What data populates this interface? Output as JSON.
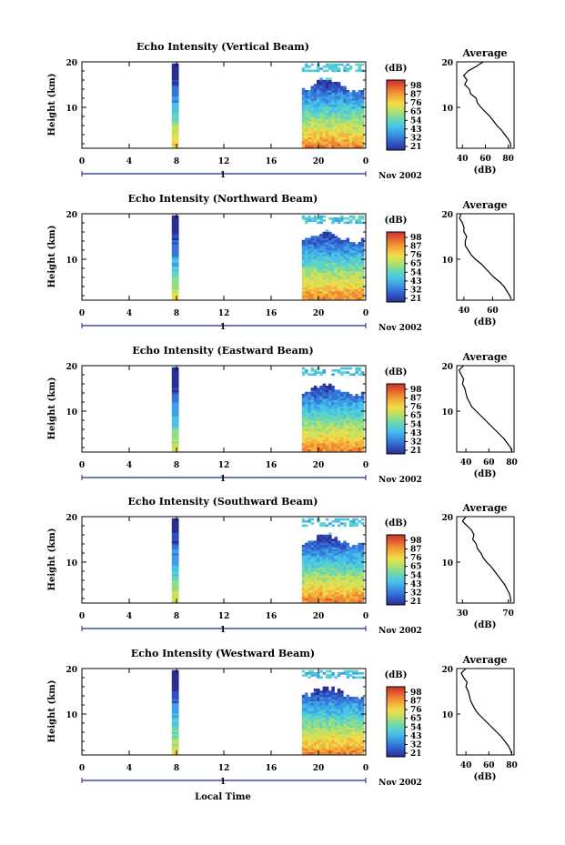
{
  "time_axis_label": "Local Time",
  "colors": {
    "colorbar": [
      "#2a2f8f",
      "#2e4fbf",
      "#3576d8",
      "#3d9fe6",
      "#48c3e6",
      "#5fd4c2",
      "#8fdc8a",
      "#c6e15e",
      "#f0dc4a",
      "#f3b53c",
      "#ee8a34",
      "#e2562e",
      "#c8322a"
    ],
    "trace": "#000000",
    "axis": "#000000",
    "baseline": "#1c2a8a"
  },
  "chart_data": [
    {
      "type": "heatmap",
      "title": "Echo Intensity (Vertical Beam)",
      "ylabel": "Height (km)",
      "x_ticks": [
        "0",
        "4",
        "8",
        "12",
        "16",
        "20",
        "0"
      ],
      "xlim": [
        0,
        24
      ],
      "y_ticks": [
        "20",
        "10"
      ],
      "ylim": [
        1,
        20
      ],
      "date_day": "1",
      "date_month": "Nov 2002",
      "colorbar": {
        "unit": "(dB)",
        "ticks": [
          "98",
          "87",
          "76",
          "65",
          "54",
          "43",
          "32",
          "21"
        ]
      },
      "average_profile": {
        "type": "line",
        "title": "Average",
        "xlabel": "(dB)",
        "x_ticks": [
          "40",
          "60",
          "80"
        ],
        "xlim": [
          35,
          85
        ],
        "y_ticks": [
          "20",
          "10"
        ],
        "ylim": [
          1,
          20
        ],
        "x": [
          58,
          52,
          45,
          41,
          44,
          42,
          46,
          47,
          52,
          53,
          56,
          60,
          64,
          67,
          70,
          74,
          77,
          80,
          82,
          82
        ],
        "y": [
          20,
          19,
          18,
          17,
          16,
          15,
          14,
          13,
          12,
          11,
          10,
          9,
          8,
          7,
          6,
          5,
          4,
          3,
          2,
          1.2
        ]
      }
    },
    {
      "type": "heatmap",
      "title": "Echo Intensity (Northward Beam)",
      "ylabel": "Height (km)",
      "x_ticks": [
        "0",
        "4",
        "8",
        "12",
        "16",
        "20",
        "0"
      ],
      "xlim": [
        0,
        24
      ],
      "y_ticks": [
        "20",
        "10"
      ],
      "ylim": [
        1,
        20
      ],
      "date_day": "1",
      "date_month": "Nov 2002",
      "colorbar": {
        "unit": "(dB)",
        "ticks": [
          "98",
          "87",
          "76",
          "65",
          "54",
          "43",
          "32",
          "21"
        ]
      },
      "average_profile": {
        "type": "line",
        "title": "Average",
        "xlabel": "(dB)",
        "x_ticks": [
          "40",
          "60"
        ],
        "xlim": [
          35,
          75
        ],
        "y_ticks": [
          "20",
          "10"
        ],
        "ylim": [
          1,
          20
        ],
        "x": [
          38,
          37,
          39,
          40,
          40,
          42,
          41,
          41,
          43,
          45,
          48,
          52,
          55,
          58,
          61,
          65,
          68,
          70,
          72,
          73
        ],
        "y": [
          20,
          19,
          18,
          17,
          16,
          15,
          14,
          13,
          12,
          11,
          10,
          9,
          8,
          7,
          6,
          5,
          4,
          3,
          2,
          1.2
        ]
      }
    },
    {
      "type": "heatmap",
      "title": "Echo Intensity (Eastward Beam)",
      "ylabel": "Height (km)",
      "x_ticks": [
        "0",
        "4",
        "8",
        "12",
        "16",
        "20",
        "0"
      ],
      "xlim": [
        0,
        24
      ],
      "y_ticks": [
        "20",
        "10"
      ],
      "ylim": [
        1,
        20
      ],
      "date_day": "1",
      "date_month": "Nov 2002",
      "colorbar": {
        "unit": "(dB)",
        "ticks": [
          "98",
          "87",
          "76",
          "65",
          "54",
          "43",
          "32",
          "21"
        ]
      },
      "average_profile": {
        "type": "line",
        "title": "Average",
        "xlabel": "(dB)",
        "x_ticks": [
          "40",
          "60",
          "80"
        ],
        "xlim": [
          32,
          82
        ],
        "y_ticks": [
          "20",
          "10"
        ],
        "ylim": [
          1,
          20
        ],
        "x": [
          38,
          34,
          36,
          38,
          37,
          39,
          40,
          41,
          43,
          45,
          49,
          53,
          57,
          61,
          65,
          69,
          73,
          76,
          79,
          80
        ],
        "y": [
          20,
          19,
          18,
          17,
          16,
          15,
          14,
          13,
          12,
          11,
          10,
          9,
          8,
          7,
          6,
          5,
          4,
          3,
          2,
          1.2
        ]
      }
    },
    {
      "type": "heatmap",
      "title": "Echo Intensity (Southward Beam)",
      "ylabel": "Height (km)",
      "x_ticks": [
        "0",
        "4",
        "8",
        "12",
        "16",
        "20",
        "0"
      ],
      "xlim": [
        0,
        24
      ],
      "y_ticks": [
        "20",
        "10"
      ],
      "ylim": [
        1,
        20
      ],
      "date_day": "1",
      "date_month": "Nov 2002",
      "colorbar": {
        "unit": "(dB)",
        "ticks": [
          "98",
          "87",
          "76",
          "65",
          "54",
          "43",
          "32",
          "21"
        ]
      },
      "average_profile": {
        "type": "line",
        "title": "Average",
        "xlabel": "(dB)",
        "x_ticks": [
          "30",
          "70"
        ],
        "xlim": [
          25,
          75
        ],
        "y_ticks": [
          "20",
          "10"
        ],
        "ylim": [
          1,
          20
        ],
        "x": [
          33,
          30,
          34,
          38,
          40,
          39,
          42,
          43,
          46,
          48,
          51,
          55,
          58,
          61,
          64,
          67,
          69,
          71,
          72,
          72
        ],
        "y": [
          20,
          19,
          18,
          17,
          16,
          15,
          14,
          13,
          12,
          11,
          10,
          9,
          8,
          7,
          6,
          5,
          4,
          3,
          2,
          1.2
        ]
      }
    },
    {
      "type": "heatmap",
      "title": "Echo Intensity (Westward Beam)",
      "ylabel": "Height (km)",
      "x_ticks": [
        "0",
        "4",
        "8",
        "12",
        "16",
        "20",
        "0"
      ],
      "xlim": [
        0,
        24
      ],
      "y_ticks": [
        "20",
        "10"
      ],
      "ylim": [
        1,
        20
      ],
      "date_day": "1",
      "date_month": "Nov 2002",
      "colorbar": {
        "unit": "(dB)",
        "ticks": [
          "98",
          "87",
          "76",
          "65",
          "54",
          "43",
          "32",
          "21"
        ]
      },
      "average_profile": {
        "type": "line",
        "title": "Average",
        "xlabel": "(dB)",
        "x_ticks": [
          "40",
          "60",
          "80"
        ],
        "xlim": [
          32,
          82
        ],
        "y_ticks": [
          "20",
          "10"
        ],
        "ylim": [
          1,
          20
        ],
        "x": [
          40,
          36,
          38,
          41,
          40,
          42,
          43,
          44,
          46,
          48,
          51,
          55,
          59,
          63,
          67,
          71,
          74,
          77,
          79,
          80
        ],
        "y": [
          20,
          19,
          18,
          17,
          16,
          15,
          14,
          13,
          12,
          11,
          10,
          9,
          8,
          7,
          6,
          5,
          4,
          3,
          2,
          1.2
        ]
      }
    }
  ]
}
